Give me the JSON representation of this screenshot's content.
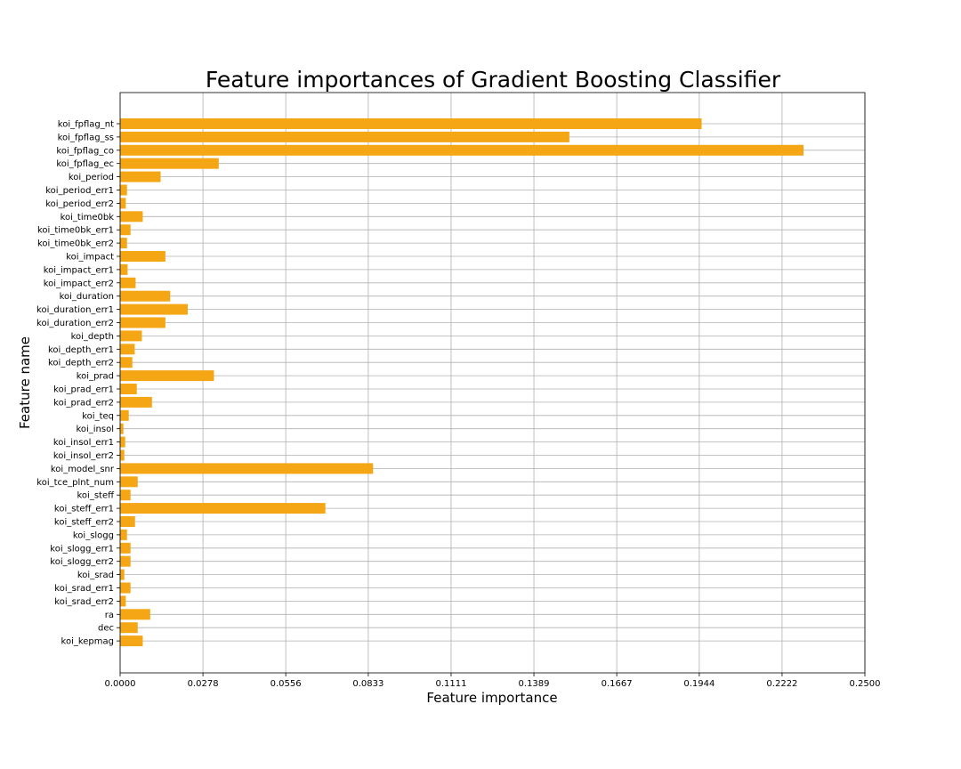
{
  "chart_data": {
    "type": "bar",
    "orientation": "horizontal",
    "title": "Feature importances of Gradient Boosting Classifier",
    "xlabel": "Feature importance",
    "ylabel": "Feature name",
    "xlim": [
      0,
      0.25
    ],
    "xticks": [
      "0.0000",
      "0.0278",
      "0.0556",
      "0.0833",
      "0.1111",
      "0.1389",
      "0.1667",
      "0.1944",
      "0.2222",
      "0.2500"
    ],
    "grid": true,
    "bar_color": "#f5a615",
    "categories": [
      "koi_fpflag_nt",
      "koi_fpflag_ss",
      "koi_fpflag_co",
      "koi_fpflag_ec",
      "koi_period",
      "koi_period_err1",
      "koi_period_err2",
      "koi_time0bk",
      "koi_time0bk_err1",
      "koi_time0bk_err2",
      "koi_impact",
      "koi_impact_err1",
      "koi_impact_err2",
      "koi_duration",
      "koi_duration_err1",
      "koi_duration_err2",
      "koi_depth",
      "koi_depth_err1",
      "koi_depth_err2",
      "koi_prad",
      "koi_prad_err1",
      "koi_prad_err2",
      "koi_teq",
      "koi_insol",
      "koi_insol_err1",
      "koi_insol_err2",
      "koi_model_snr",
      "koi_tce_plnt_num",
      "koi_steff",
      "koi_steff_err1",
      "koi_steff_err2",
      "koi_slogg",
      "koi_slogg_err1",
      "koi_slogg_err2",
      "koi_srad",
      "koi_srad_err1",
      "koi_srad_err2",
      "ra",
      "dec",
      "koi_kepmag"
    ],
    "values": [
      0.1952,
      0.1508,
      0.2294,
      0.0331,
      0.0136,
      0.0023,
      0.0019,
      0.0076,
      0.0035,
      0.0023,
      0.0152,
      0.0025,
      0.0052,
      0.0168,
      0.0227,
      0.0152,
      0.0073,
      0.0049,
      0.0041,
      0.0315,
      0.0056,
      0.0107,
      0.0029,
      0.0011,
      0.0017,
      0.0014,
      0.0849,
      0.0059,
      0.0035,
      0.0689,
      0.005,
      0.0023,
      0.0035,
      0.0035,
      0.0014,
      0.0035,
      0.0019,
      0.0101,
      0.0059,
      0.0076
    ]
  }
}
